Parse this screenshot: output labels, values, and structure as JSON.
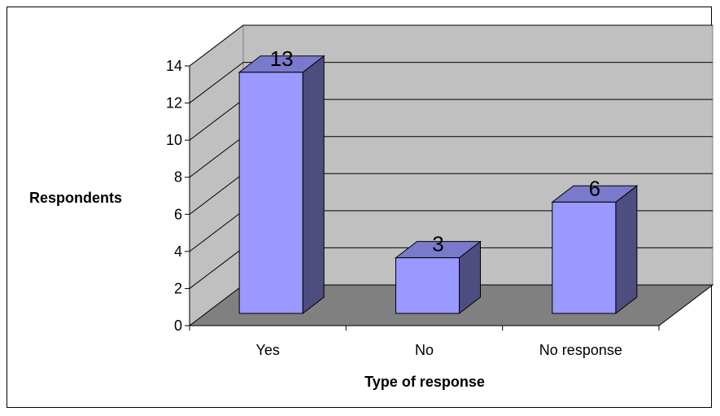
{
  "chart_data": {
    "type": "bar",
    "style": "3d-column",
    "categories": [
      "Yes",
      "No",
      "No response"
    ],
    "values": [
      13,
      3,
      6
    ],
    "data_labels": [
      "13",
      "3",
      "6"
    ],
    "title": "",
    "xlabel": "Type of response",
    "ylabel": "Respondents",
    "ylim": [
      0,
      14
    ],
    "yticks": [
      "0",
      "2",
      "4",
      "6",
      "8",
      "10",
      "12",
      "14"
    ],
    "grid": true,
    "legend": "none"
  },
  "colors": {
    "bar_front": "#9999ff",
    "bar_side": "#4d4d80",
    "bar_top": "#7a7acc",
    "back_wall": "#c0c0c0",
    "side_wall": "#c0c0c0",
    "floor": "#808080",
    "gridline": "#000000"
  }
}
